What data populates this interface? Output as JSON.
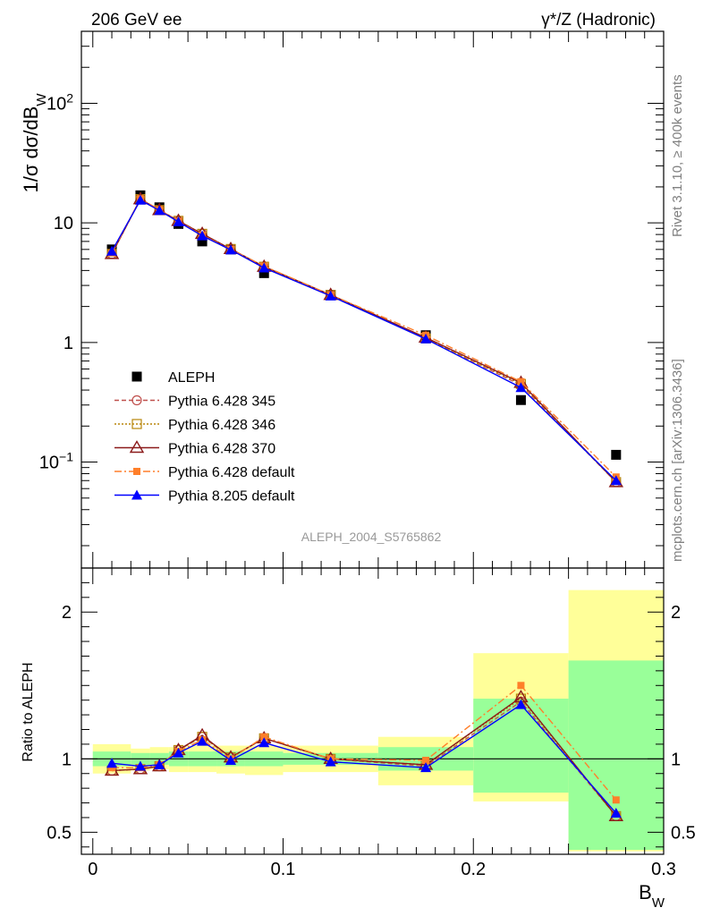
{
  "header": {
    "left": "206 GeV ee",
    "right": "γ*/Z (Hadronic)"
  },
  "side_labels": {
    "rivet": "Rivet 3.1.10, ≥ 400k events",
    "mcplots": "mcplots.cern.ch [arXiv:1306.3436]"
  },
  "analysis_tag": "ALEPH_2004_S5765862",
  "colors": {
    "aleph": "#000000",
    "py345": "#c0504d",
    "py346": "#b8860b",
    "py370": "#8b1a1a",
    "py6def": "#ff7f2a",
    "py8def": "#0000ff",
    "band_yellow": "#ffff99",
    "band_green": "#99ff99"
  },
  "chart_data": [
    {
      "type": "line",
      "title": "",
      "ylabel_main": "1/σ  dσ/dB",
      "ylabel_sub": "W",
      "yscale": "log",
      "ylim": [
        0.013,
        400
      ],
      "xlim": [
        -0.006,
        0.3
      ],
      "ytick_labels": [
        {
          "label": "10",
          "sup": "2"
        },
        {
          "label": "10",
          "sup": ""
        },
        {
          "label": "1",
          "sup": ""
        },
        {
          "label": "10",
          "sup": "−1"
        }
      ],
      "ytick_values": [
        100,
        10,
        1,
        0.1
      ],
      "x": [
        0.01,
        0.025,
        0.035,
        0.045,
        0.0575,
        0.0725,
        0.09,
        0.125,
        0.175,
        0.225,
        0.275
      ],
      "data": {
        "name": "ALEPH",
        "values": [
          6.0,
          17.0,
          13.5,
          9.8,
          7.0,
          6.0,
          3.8,
          2.5,
          1.15,
          0.33,
          0.115
        ]
      },
      "series": [
        {
          "name": "Pythia 6.428 345",
          "values": [
            5.5,
            15.8,
            12.8,
            10.4,
            8.1,
            6.05,
            4.3,
            2.5,
            1.08,
            0.44,
            0.068
          ]
        },
        {
          "name": "Pythia 6.428 346",
          "values": [
            5.5,
            15.8,
            12.8,
            10.4,
            8.1,
            6.05,
            4.3,
            2.5,
            1.08,
            0.45,
            0.068
          ]
        },
        {
          "name": "Pythia 6.428 370",
          "values": [
            5.5,
            15.8,
            12.8,
            10.4,
            8.1,
            6.05,
            4.3,
            2.5,
            1.1,
            0.46,
            0.068
          ]
        },
        {
          "name": "Pythia 6.428 default",
          "values": [
            5.6,
            15.9,
            12.9,
            10.3,
            7.9,
            6.0,
            4.35,
            2.5,
            1.15,
            0.47,
            0.075
          ]
        },
        {
          "name": "Pythia 8.205 default",
          "values": [
            5.8,
            15.5,
            12.7,
            10.2,
            7.8,
            5.95,
            4.2,
            2.45,
            1.07,
            0.42,
            0.07
          ]
        }
      ]
    },
    {
      "type": "line",
      "ylabel": "Ratio to ALEPH",
      "xlabel_main": "B",
      "xlabel_sub": "W",
      "ylim": [
        0.35,
        2.3
      ],
      "xlim": [
        -0.006,
        0.3
      ],
      "ytick_labels": [
        "2",
        "1",
        "0.5"
      ],
      "ytick_values": [
        2,
        1,
        0.5
      ],
      "xtick_labels": [
        "0",
        "0.1",
        "0.2",
        "0.3"
      ],
      "xtick_values": [
        0,
        0.1,
        0.2,
        0.3
      ],
      "bins": [
        [
          0.0,
          0.02
        ],
        [
          0.02,
          0.03
        ],
        [
          0.03,
          0.04
        ],
        [
          0.04,
          0.05
        ],
        [
          0.05,
          0.065
        ],
        [
          0.065,
          0.08
        ],
        [
          0.08,
          0.1
        ],
        [
          0.1,
          0.15
        ],
        [
          0.15,
          0.2
        ],
        [
          0.2,
          0.25
        ],
        [
          0.25,
          0.3
        ]
      ],
      "band_yellow": [
        [
          0.9,
          1.1
        ],
        [
          0.92,
          1.07
        ],
        [
          0.93,
          1.08
        ],
        [
          0.91,
          1.08
        ],
        [
          0.91,
          1.09
        ],
        [
          0.9,
          1.09
        ],
        [
          0.89,
          1.09
        ],
        [
          0.91,
          1.09
        ],
        [
          0.82,
          1.15
        ],
        [
          0.71,
          1.72
        ],
        [
          0.37,
          2.15
        ]
      ],
      "band_green": [
        [
          0.95,
          1.05
        ],
        [
          0.96,
          1.04
        ],
        [
          0.96,
          1.04
        ],
        [
          0.95,
          1.05
        ],
        [
          0.95,
          1.05
        ],
        [
          0.95,
          1.05
        ],
        [
          0.95,
          1.05
        ],
        [
          0.96,
          1.04
        ],
        [
          0.92,
          1.08
        ],
        [
          0.77,
          1.41
        ],
        [
          0.38,
          1.67
        ]
      ],
      "x": [
        0.01,
        0.025,
        0.035,
        0.045,
        0.0575,
        0.0725,
        0.09,
        0.125,
        0.175,
        0.225,
        0.275
      ],
      "series": [
        {
          "name": "Pythia 6.428 345",
          "values": [
            0.92,
            0.93,
            0.95,
            1.06,
            1.15,
            1.01,
            1.14,
            1.0,
            0.95,
            1.39,
            0.61
          ]
        },
        {
          "name": "Pythia 6.428 346",
          "values": [
            0.92,
            0.93,
            0.95,
            1.06,
            1.15,
            1.01,
            1.14,
            1.0,
            0.96,
            1.41,
            0.61
          ]
        },
        {
          "name": "Pythia 6.428 370",
          "values": [
            0.92,
            0.93,
            0.95,
            1.06,
            1.16,
            1.01,
            1.14,
            1.0,
            0.96,
            1.42,
            0.61
          ]
        },
        {
          "name": "Pythia 6.428 default",
          "values": [
            0.94,
            0.94,
            0.96,
            1.05,
            1.13,
            1.0,
            1.15,
            1.0,
            0.99,
            1.5,
            0.72
          ]
        },
        {
          "name": "Pythia 8.205 default",
          "values": [
            0.97,
            0.95,
            0.96,
            1.04,
            1.12,
            0.99,
            1.11,
            0.98,
            0.94,
            1.37,
            0.63
          ]
        }
      ]
    }
  ]
}
